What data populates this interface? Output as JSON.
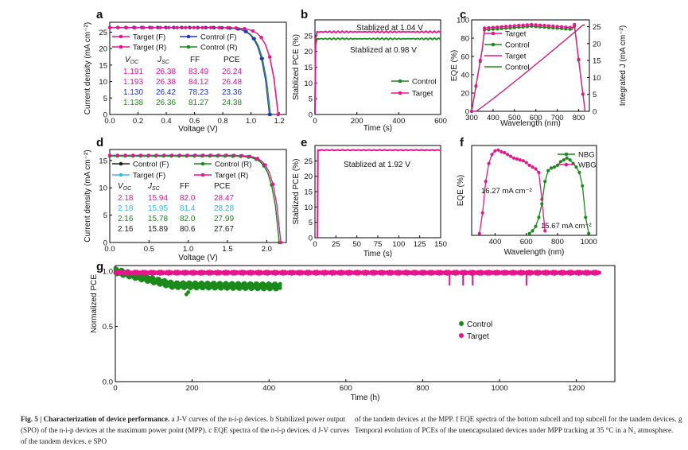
{
  "panels": {
    "a": {
      "letter": "a",
      "ylabel": "Current density (mA cm⁻²)",
      "xlabel": "Voltage (V)",
      "xticks": [
        "0.0",
        "0.2",
        "0.4",
        "0.6",
        "0.8",
        "1.0",
        "1.2"
      ],
      "yticks": [
        "0",
        "5",
        "10",
        "15",
        "20",
        "25"
      ],
      "legend": [
        "Target (F)",
        "Control (F)",
        "Target (R)",
        "Control (R)"
      ],
      "table_header": [
        "V",
        "J",
        "FF",
        "PCE"
      ],
      "table_header_sub": [
        "OC",
        "SC",
        "",
        ""
      ],
      "rows": [
        {
          "cells": [
            "1.191",
            "26.38",
            "83.49",
            "26.24"
          ],
          "color": "#e8148c"
        },
        {
          "cells": [
            "1.193",
            "26.38",
            "84.12",
            "26.48"
          ],
          "color": "#e8148c"
        },
        {
          "cells": [
            "1.130",
            "26.42",
            "78.23",
            "23.36"
          ],
          "color": "#2233cc"
        },
        {
          "cells": [
            "1.138",
            "26.36",
            "81.27",
            "24.38"
          ],
          "color": "#1a8a1a"
        }
      ]
    },
    "b": {
      "letter": "b",
      "ylabel": "Stablized PCE (%)",
      "xlabel": "Time (s)",
      "xticks": [
        "0",
        "200",
        "400",
        "600"
      ],
      "yticks": [
        "0",
        "5",
        "10",
        "15",
        "20",
        "25"
      ],
      "annot_top": "Stablized at 1.04 V",
      "annot_bottom": "Stablized at 0.98 V",
      "legend": [
        "Control",
        "Target"
      ]
    },
    "c": {
      "letter": "c",
      "ylabel": "EQE (%)",
      "ylabel2": "Integrated J  (mA cm⁻²)",
      "xlabel": "Wavelength (nm)",
      "xticks": [
        "300",
        "400",
        "500",
        "600",
        "700",
        "800"
      ],
      "yticks": [
        "0",
        "20",
        "40",
        "60",
        "80",
        "100"
      ],
      "yticks2": [
        "0",
        "5",
        "10",
        "15",
        "20",
        "25"
      ],
      "legend": [
        "Target",
        "Control",
        "Target",
        "Control"
      ]
    },
    "d": {
      "letter": "d",
      "ylabel": "Current density (mA cm⁻²)",
      "xlabel": "Voltage (V)",
      "xticks": [
        "0.0",
        "0.5",
        "1.0",
        "1.5",
        "2.0"
      ],
      "yticks": [
        "0",
        "5",
        "10",
        "15"
      ],
      "legend": [
        "Control (F)",
        "Control (R)",
        "Target (F)",
        "Target (R)"
      ],
      "table_header": [
        "V",
        "J",
        "FF",
        "PCE"
      ],
      "table_header_sub": [
        "OC",
        "SC",
        "",
        ""
      ],
      "rows": [
        {
          "cells": [
            "2.18",
            "15.94",
            "82.0",
            "28.47"
          ],
          "color": "#e8148c"
        },
        {
          "cells": [
            "2.18",
            "15.95",
            "81.4",
            "28.28"
          ],
          "color": "#3fb6e8"
        },
        {
          "cells": [
            "2.16",
            "15.78",
            "82.0",
            "27.99"
          ],
          "color": "#1a8a1a"
        },
        {
          "cells": [
            "2.16",
            "15.89",
            "80.6",
            "27.67"
          ],
          "color": "#222222"
        }
      ]
    },
    "e": {
      "letter": "e",
      "ylabel": "Stablized PCE (%)",
      "xlabel": "Time (s)",
      "xticks": [
        "0",
        "25",
        "50",
        "75",
        "100",
        "125",
        "150"
      ],
      "yticks": [
        "0",
        "5",
        "10",
        "15",
        "20",
        "25"
      ],
      "annot": "Stablized at 1.92 V"
    },
    "f": {
      "letter": "f",
      "ylabel": "EQE (%)",
      "xlabel": "Wavelength (nm)",
      "xticks": [
        "400",
        "600",
        "800",
        "1000"
      ],
      "legend": [
        "NBG",
        "WBG"
      ],
      "annot1": "16.27 mA cm⁻²",
      "annot2": "15.67 mA cm⁻²"
    },
    "g": {
      "letter": "g",
      "ylabel": "Normalized PCE",
      "xlabel": "Time (h)",
      "xticks": [
        "0",
        "200",
        "400",
        "600",
        "800",
        "1000",
        "1200"
      ],
      "yticks": [
        "0.0",
        "0.5",
        "1.0"
      ],
      "legend": [
        "Control",
        "Target"
      ]
    }
  },
  "caption": {
    "left_bold": "Fig. 5 | Characterization of device performance.",
    "left_rest": " a J-V curves of the n-i-p devices. b Stabilized power output (SPO) of the n-i-p devices at the maximum power point (MPP). c EQE spectra of the n-i-p devices. d J-V curves of the tandem devices. e SPO",
    "right": "of the tandem devices at the MPP. f EQE spectra of the bottom subcell and top subcell for the tandem devices. g Temporal evolution of PCEs of the unencapsulated devices under MPP tracking at 35 °C in a N₂ atmosphere."
  },
  "chart_data": [
    {
      "type": "line",
      "panel": "a",
      "xlabel": "Voltage (V)",
      "ylabel": "Current density (mA cm-2)",
      "xlim": [
        0,
        1.25
      ],
      "ylim": [
        0,
        28
      ],
      "series": [
        {
          "name": "Target (F)",
          "color": "#e8148c",
          "voc": 1.191,
          "jsc": 26.38
        },
        {
          "name": "Control (F)",
          "color": "#2233cc",
          "voc": 1.13,
          "jsc": 26.42
        },
        {
          "name": "Target (R)",
          "color": "#e8148c",
          "voc": 1.193,
          "jsc": 26.38
        },
        {
          "name": "Control (R)",
          "color": "#1a8a1a",
          "voc": 1.138,
          "jsc": 26.36
        }
      ]
    },
    {
      "type": "line",
      "panel": "b",
      "xlabel": "Time (s)",
      "ylabel": "Stablized PCE (%)",
      "xlim": [
        0,
        600
      ],
      "ylim": [
        0,
        30
      ],
      "series": [
        {
          "name": "Control",
          "color": "#1a8a1a",
          "value": 24.0
        },
        {
          "name": "Target",
          "color": "#e8148c",
          "value": 26.2
        }
      ]
    },
    {
      "type": "line",
      "panel": "c",
      "xlabel": "Wavelength (nm)",
      "ylabel": "EQE (%)",
      "xlim": [
        300,
        850
      ],
      "ylim": [
        0,
        100
      ],
      "y2lim": [
        0,
        27
      ],
      "series": [
        {
          "name": "Target",
          "color": "#e8148c",
          "peak": 95
        },
        {
          "name": "Control",
          "color": "#1a8a1a",
          "peak": 93
        },
        {
          "name": "Target",
          "color": "#e8148c",
          "integrated": 25.5
        },
        {
          "name": "Control",
          "color": "#1a8a1a",
          "integrated": 25.4
        }
      ]
    },
    {
      "type": "line",
      "panel": "d",
      "xlabel": "Voltage (V)",
      "ylabel": "Current density (mA cm-2)",
      "xlim": [
        0,
        2.25
      ],
      "ylim": [
        0,
        17
      ],
      "series": [
        {
          "name": "Control (F)",
          "color": "#222222",
          "voc": 2.16,
          "jsc": 15.89
        },
        {
          "name": "Control (R)",
          "color": "#1a8a1a",
          "voc": 2.16,
          "jsc": 15.78
        },
        {
          "name": "Target (F)",
          "color": "#3fb6e8",
          "voc": 2.18,
          "jsc": 15.95
        },
        {
          "name": "Target (R)",
          "color": "#e8148c",
          "voc": 2.18,
          "jsc": 15.94
        }
      ]
    },
    {
      "type": "line",
      "panel": "e",
      "xlabel": "Time (s)",
      "ylabel": "Stablized PCE (%)",
      "xlim": [
        0,
        150
      ],
      "ylim": [
        0,
        30
      ],
      "series": [
        {
          "name": "",
          "color": "#e8148c",
          "value": 28.5
        }
      ]
    },
    {
      "type": "line",
      "panel": "f",
      "xlabel": "Wavelength (nm)",
      "ylabel": "EQE (%)",
      "xlim": [
        250,
        1050
      ],
      "ylim": [
        0,
        100
      ],
      "series": [
        {
          "name": "WBG",
          "color": "#e8148c",
          "x": [
            300,
            320,
            340,
            360,
            380,
            400,
            420,
            440,
            460,
            480,
            500,
            520,
            540,
            560,
            580,
            600,
            620,
            640,
            660,
            680,
            700,
            720
          ],
          "y": [
            2,
            25,
            60,
            80,
            90,
            94,
            95,
            93,
            92,
            90,
            88,
            86,
            85,
            84,
            83,
            81,
            78,
            76,
            74,
            70,
            40,
            5
          ]
        },
        {
          "name": "NBG",
          "color": "#1a8a1a",
          "x": [
            620,
            640,
            660,
            680,
            700,
            720,
            740,
            760,
            780,
            800,
            820,
            840,
            860,
            880,
            900,
            920,
            940,
            960,
            980,
            1000
          ],
          "y": [
            2,
            5,
            10,
            20,
            35,
            60,
            72,
            75,
            76,
            78,
            82,
            84,
            86,
            84,
            80,
            76,
            70,
            55,
            20,
            2
          ]
        }
      ]
    },
    {
      "type": "scatter",
      "panel": "g",
      "xlabel": "Time (h)",
      "ylabel": "Normalized PCE",
      "xlim": [
        0,
        1300
      ],
      "ylim": [
        0,
        1.05
      ],
      "series": [
        {
          "name": "Control",
          "color": "#1a8a1a",
          "x_end": 430,
          "level": 0.9
        },
        {
          "name": "Target",
          "color": "#e8148c",
          "x_end": 1260,
          "level": 0.98
        }
      ]
    }
  ]
}
